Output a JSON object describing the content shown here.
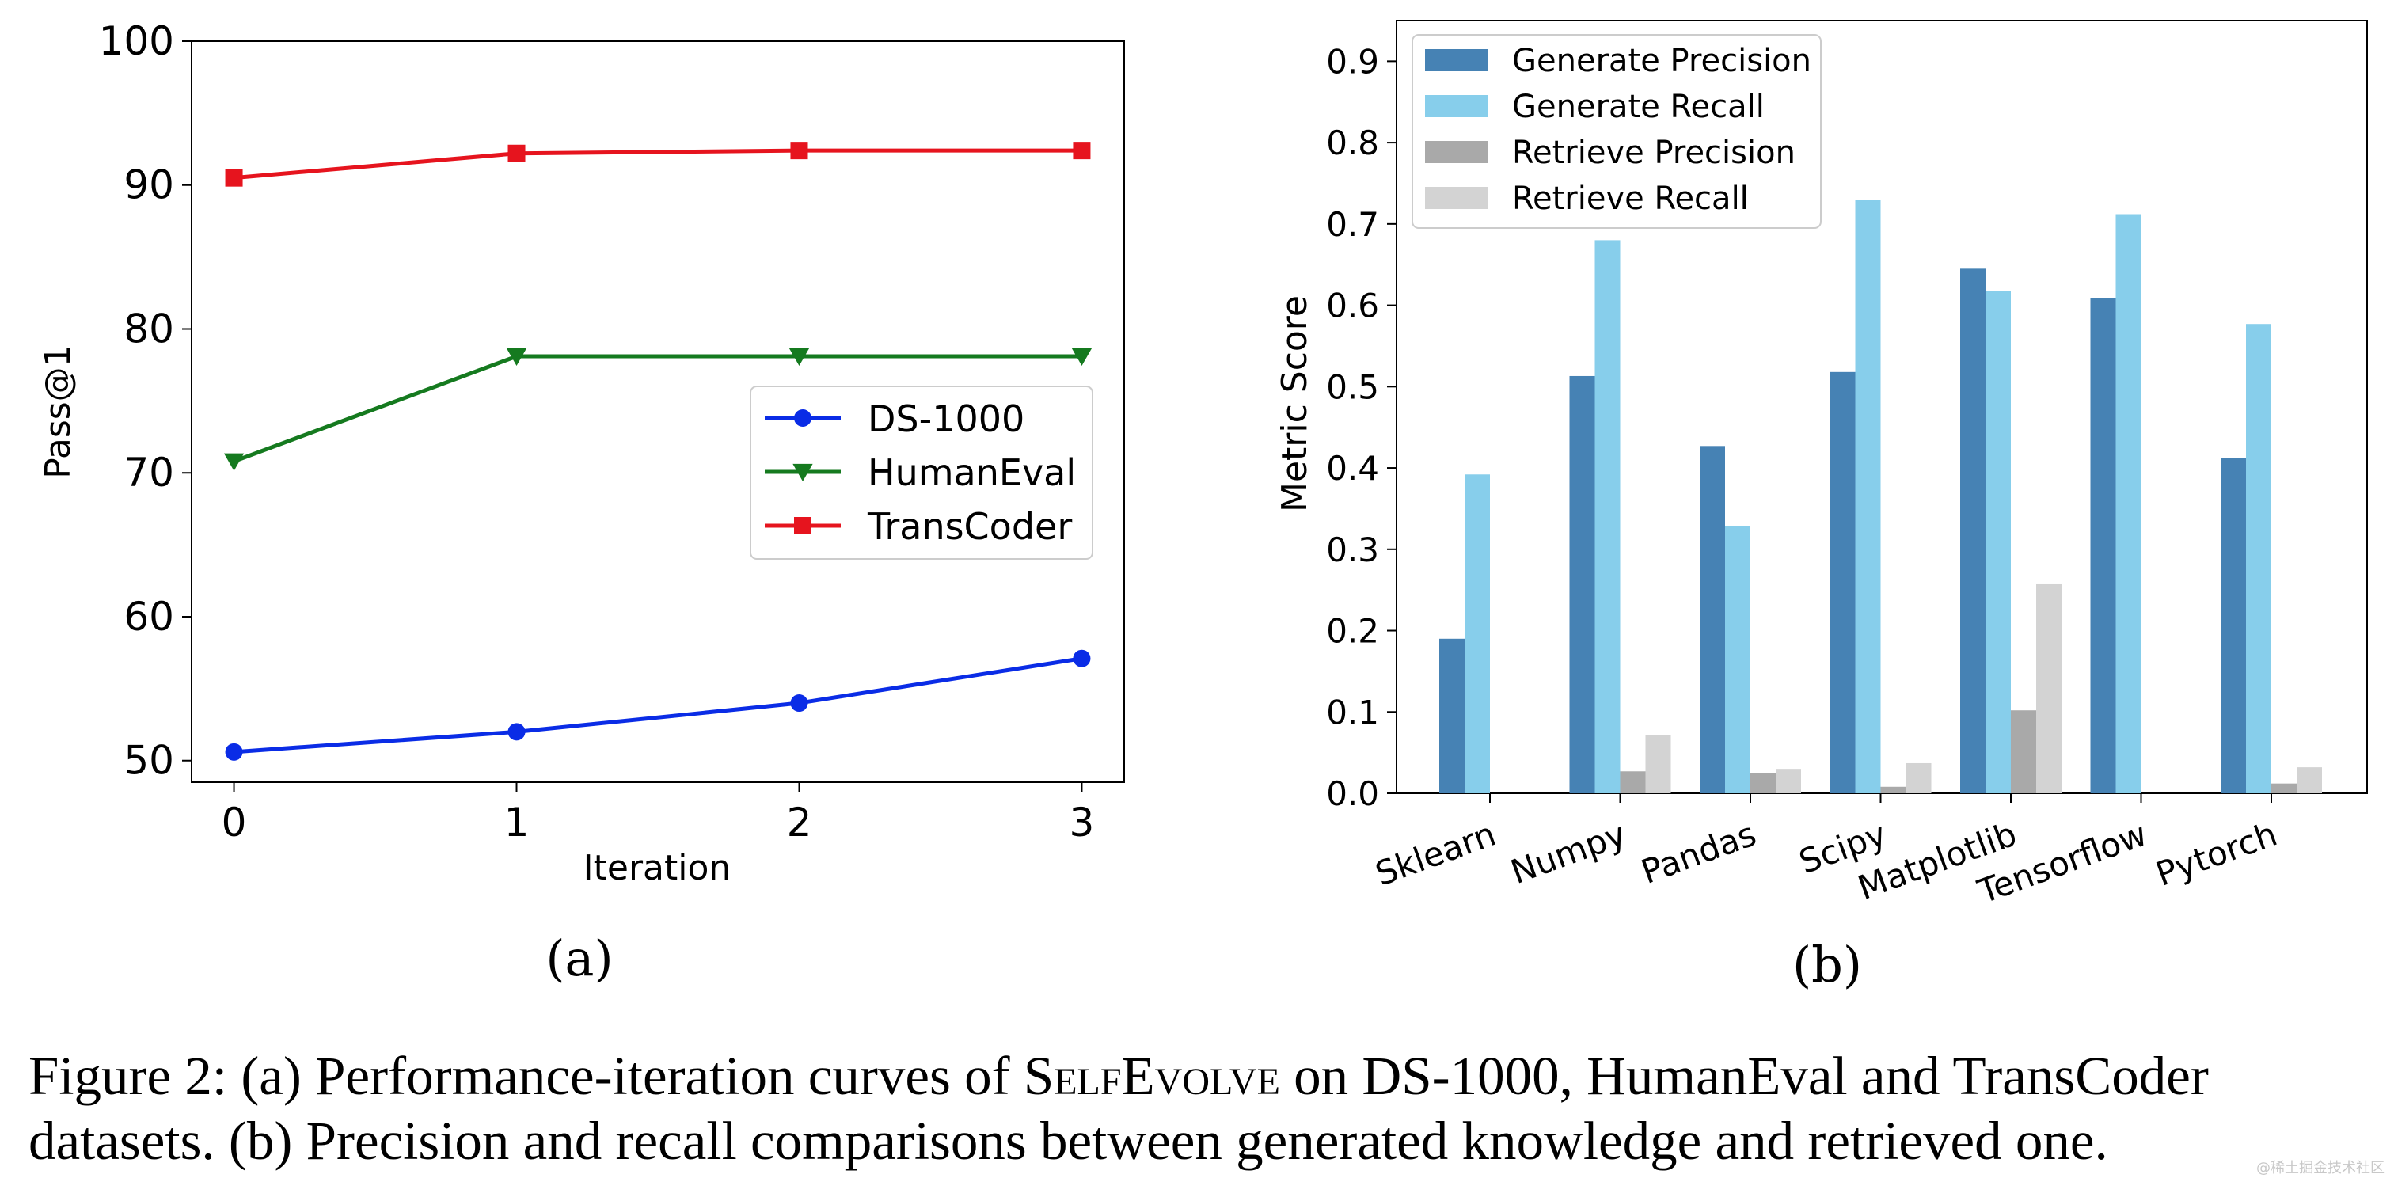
{
  "chart_data": [
    {
      "id": "a",
      "type": "line",
      "panel_label": "(a)",
      "xlabel": "Iteration",
      "ylabel": "Pass@1",
      "x": [
        0,
        1,
        2,
        3
      ],
      "x_ticks": [
        "0",
        "1",
        "2",
        "3"
      ],
      "y_ticks": [
        "50",
        "60",
        "70",
        "80",
        "90",
        "100"
      ],
      "ylim": [
        48.5,
        100
      ],
      "xlim": [
        -0.15,
        3.15
      ],
      "grid": false,
      "legend_position": "center-right",
      "series": [
        {
          "name": "DS-1000",
          "values": [
            50.6,
            52.0,
            54.0,
            57.1
          ],
          "color": "#0a2ce6",
          "marker": "circle"
        },
        {
          "name": "HumanEval",
          "values": [
            70.8,
            78.1,
            78.1,
            78.1
          ],
          "color": "#157a1f",
          "marker": "triangle-down"
        },
        {
          "name": "TransCoder",
          "values": [
            90.5,
            92.2,
            92.4,
            92.4
          ],
          "color": "#e6141e",
          "marker": "square"
        }
      ]
    },
    {
      "id": "b",
      "type": "bar",
      "panel_label": "(b)",
      "xlabel": "",
      "ylabel": "Metric Score",
      "categories": [
        "Sklearn",
        "Numpy",
        "Pandas",
        "Scipy",
        "Matplotlib",
        "Tensorflow",
        "Pytorch"
      ],
      "y_ticks": [
        "0.0",
        "0.1",
        "0.2",
        "0.3",
        "0.4",
        "0.5",
        "0.6",
        "0.7",
        "0.8",
        "0.9"
      ],
      "ylim": [
        0,
        0.95
      ],
      "grid": false,
      "legend_position": "top-left",
      "series": [
        {
          "name": "Generate Precision",
          "values": [
            0.19,
            0.513,
            0.427,
            0.518,
            0.645,
            0.609,
            0.412
          ],
          "color": "#4682b4"
        },
        {
          "name": "Generate Recall",
          "values": [
            0.392,
            0.68,
            0.329,
            0.73,
            0.618,
            0.712,
            0.577
          ],
          "color": "#87ceeb"
        },
        {
          "name": "Retrieve Precision",
          "values": [
            0.0,
            0.027,
            0.025,
            0.008,
            0.102,
            0.0,
            0.012
          ],
          "color": "#a9a9a9"
        },
        {
          "name": "Retrieve Recall",
          "values": [
            0.0,
            0.072,
            0.03,
            0.037,
            0.257,
            0.0,
            0.032
          ],
          "color": "#d3d3d3"
        }
      ]
    }
  ],
  "caption": {
    "prefix": "Figure 2: (a) Performance-iteration curves of ",
    "name": "SelfEvolve",
    "suffix": " on DS-1000, HumanEval and TransCoder datasets. (b) Precision and recall comparisons between generated knowledge and retrieved one."
  },
  "watermark": "@稀土掘金技术社区"
}
